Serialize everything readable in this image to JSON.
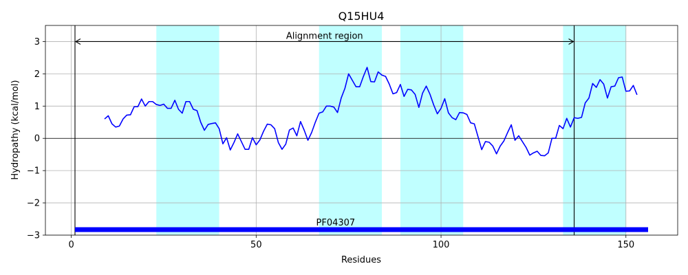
{
  "chart_data": {
    "type": "line",
    "title": "Q15HU4",
    "xlabel": "Residues",
    "ylabel": "Hydropathy (kcal/mol)",
    "xlim": [
      -7,
      164
    ],
    "ylim": [
      -3,
      3.5
    ],
    "xticks": [
      0,
      50,
      100,
      150
    ],
    "yticks": [
      -3,
      -2,
      -1,
      0,
      1,
      2,
      3
    ],
    "ytick_labels": [
      "−3",
      "−2",
      "−1",
      "0",
      "1",
      "2",
      "3"
    ],
    "grid": true,
    "colors": {
      "line": "#0000ff",
      "band": "#c0ffff",
      "domain_bar": "#0000ff",
      "axis": "#000000",
      "grid": "#b0b0b0"
    },
    "shaded_regions": [
      [
        23,
        40
      ],
      [
        67,
        84
      ],
      [
        89,
        106
      ],
      [
        133,
        150
      ]
    ],
    "vertical_lines": [
      1,
      136
    ],
    "alignment_region": {
      "label": "Alignment region",
      "start": 1,
      "end": 136,
      "y": 3.0
    },
    "domain": {
      "label": "PF04307",
      "start": 1,
      "end": 156,
      "y": -2.83
    },
    "series": [
      {
        "x": [
          9,
          10,
          11,
          12,
          13,
          14,
          15,
          16,
          17,
          18,
          19,
          20,
          21,
          22,
          23,
          24,
          25,
          26,
          27,
          28,
          29,
          30,
          31,
          32,
          33,
          34,
          35,
          36,
          37,
          38,
          39,
          40,
          41,
          42,
          43,
          44,
          45,
          46,
          47,
          48,
          49,
          50,
          51,
          52,
          53,
          54,
          55,
          56,
          57,
          58,
          59,
          60,
          61,
          62,
          63,
          64,
          65,
          66,
          67,
          68,
          69,
          70,
          71,
          72,
          73,
          74,
          75,
          76,
          77,
          78,
          79,
          80,
          81,
          82,
          83,
          84,
          85,
          86,
          87,
          88,
          89,
          90,
          91,
          92,
          93,
          94,
          95,
          96,
          97,
          98,
          99,
          100,
          101,
          102,
          103,
          104,
          105,
          106,
          107,
          108,
          109,
          110,
          111,
          112,
          113,
          114,
          115,
          116,
          117,
          118,
          119,
          120,
          121,
          122,
          123,
          124,
          125,
          126,
          127,
          128,
          129,
          130,
          131,
          132,
          133,
          134,
          135,
          136,
          137,
          138,
          139,
          140,
          141,
          142,
          143,
          144,
          145,
          146,
          147,
          148,
          149,
          150,
          151,
          152,
          153
        ],
        "values": [
          0.6,
          0.7,
          0.45,
          0.35,
          0.38,
          0.6,
          0.72,
          0.73,
          0.98,
          0.98,
          1.22,
          1.0,
          1.14,
          1.14,
          1.05,
          1.02,
          1.06,
          0.93,
          0.93,
          1.18,
          0.9,
          0.78,
          1.14,
          1.14,
          0.9,
          0.86,
          0.5,
          0.25,
          0.43,
          0.46,
          0.48,
          0.3,
          -0.17,
          0.02,
          -0.36,
          -0.13,
          0.14,
          -0.1,
          -0.34,
          -0.34,
          0.02,
          -0.2,
          -0.05,
          0.22,
          0.44,
          0.42,
          0.3,
          -0.13,
          -0.34,
          -0.18,
          0.26,
          0.32,
          0.08,
          0.52,
          0.25,
          -0.06,
          0.18,
          0.5,
          0.78,
          0.82,
          1.0,
          1.0,
          0.97,
          0.8,
          1.25,
          1.55,
          2.0,
          1.8,
          1.6,
          1.6,
          1.92,
          2.2,
          1.76,
          1.75,
          2.06,
          1.96,
          1.92,
          1.68,
          1.38,
          1.42,
          1.67,
          1.3,
          1.52,
          1.5,
          1.36,
          0.96,
          1.4,
          1.62,
          1.37,
          1.04,
          0.76,
          0.93,
          1.23,
          0.79,
          0.64,
          0.58,
          0.8,
          0.79,
          0.74,
          0.48,
          0.45,
          0.05,
          -0.35,
          -0.1,
          -0.12,
          -0.24,
          -0.48,
          -0.24,
          -0.08,
          0.18,
          0.42,
          -0.06,
          0.08,
          -0.1,
          -0.28,
          -0.52,
          -0.45,
          -0.4,
          -0.53,
          -0.54,
          -0.45,
          0.0,
          0.0,
          0.4,
          0.3,
          0.62,
          0.35,
          0.64,
          0.62,
          0.65,
          1.1,
          1.25,
          1.7,
          1.58,
          1.82,
          1.68,
          1.25,
          1.6,
          1.62,
          1.88,
          1.9,
          1.46,
          1.47,
          1.64,
          1.35
        ]
      }
    ]
  }
}
